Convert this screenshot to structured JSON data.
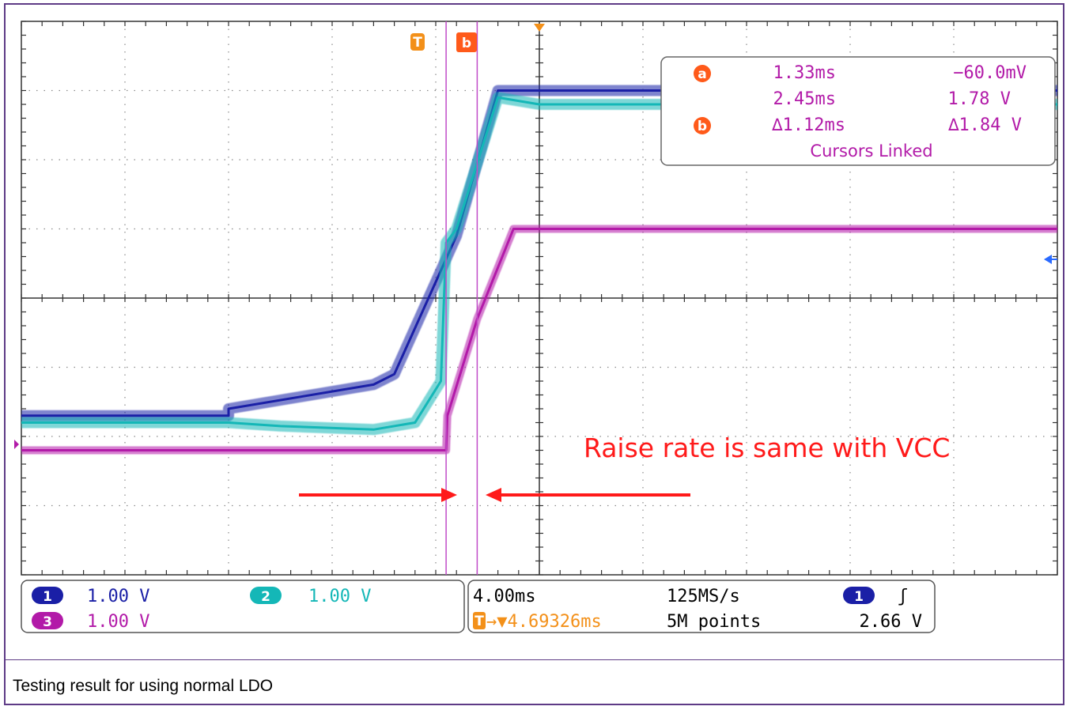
{
  "caption": "Testing result for using normal LDO",
  "colors": {
    "ch1": "#1a1fa6",
    "ch2": "#14b7b7",
    "ch3": "#b21aa8",
    "cursor": "#c04cc8",
    "trigger": "#f39019",
    "annotation": "#ff1a1a",
    "grid": "#8a8a8a"
  },
  "chart_data": {
    "type": "line",
    "title": "",
    "xlabel": "",
    "ylabel": "",
    "grid": true,
    "x_unit": "ms",
    "x_divisions": 10,
    "y_divisions": 8,
    "xlim": [
      -20.0,
      20.0
    ],
    "ylim": [
      -4.0,
      4.0
    ],
    "series": [
      {
        "channel": "1",
        "x": [
          -20.0,
          -12.0,
          -12.0,
          -6.4,
          -5.6,
          -3.2,
          -1.6,
          0.0,
          20.0
        ],
        "y": [
          -1.7,
          -1.7,
          -1.6,
          -1.25,
          -1.1,
          0.9,
          3.0,
          3.0,
          3.0
        ]
      },
      {
        "channel": "2",
        "x": [
          -20.0,
          -12.0,
          -10.0,
          -6.4,
          -4.8,
          -3.8,
          -3.6,
          -3.2,
          -1.6,
          0.0,
          20.0
        ],
        "y": [
          -1.8,
          -1.8,
          -1.85,
          -1.9,
          -1.8,
          -1.2,
          0.8,
          1.0,
          2.9,
          2.8,
          2.8
        ]
      },
      {
        "channel": "3",
        "x": [
          -20.0,
          -3.6,
          -3.55,
          -2.4,
          -1.0,
          20.0
        ],
        "y": [
          -2.2,
          -2.2,
          -1.7,
          -0.3,
          1.0,
          1.0
        ]
      }
    ]
  },
  "markers": {
    "trigger": "T",
    "cursor_a": "a",
    "cursor_b": "b",
    "cursor_a_x": -3.6,
    "cursor_b_x": -2.4,
    "trigger_x": 0.0
  },
  "cursor_box": {
    "a_time": "1.33ms",
    "a_volt": "−60.0mV",
    "b_time": "2.45ms",
    "b_volt": "1.78 V",
    "delta_time": "∆1.12ms",
    "delta_volt": "∆1.84 V",
    "linked": "Cursors Linked"
  },
  "annotation": {
    "text": "Raise rate is same with VCC"
  },
  "bottom_bar": {
    "ch1_label": "1",
    "ch1_scale": "1.00 V",
    "ch2_label": "2",
    "ch2_scale": "1.00 V",
    "ch3_label": "3",
    "ch3_scale": "1.00 V",
    "timebase": "4.00ms",
    "sample_rate": "125MS/s",
    "trigger_pos": "→▼4.69326ms",
    "record_length": "5M points",
    "trig_source": "1",
    "trig_slope": "ʃ",
    "trig_level": "2.66 V"
  }
}
